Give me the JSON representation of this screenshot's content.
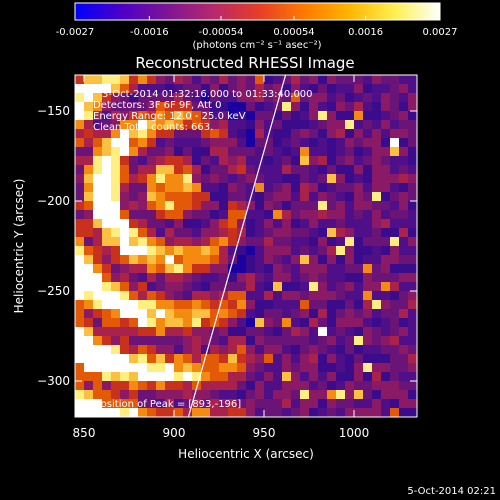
{
  "colorbar": {
    "tick_labels": [
      "-0.0027",
      "-0.0016",
      "-0.00054",
      "0.00054",
      "0.0016",
      "0.0027"
    ],
    "tick_values": [
      -0.0027,
      -0.0016,
      -0.00054,
      0.00054,
      0.0016,
      0.0027
    ],
    "range": [
      -0.0027,
      0.0027
    ],
    "unit_label": "(photons cm⁻² s⁻¹ asec⁻²)",
    "gradient_colors": [
      "#0000ff",
      "#4b00c8",
      "#7d1496",
      "#b4286e",
      "#e63c28",
      "#ff7800",
      "#ffb400",
      "#fff050",
      "#ffffff"
    ]
  },
  "chart_data": {
    "type": "heatmap",
    "title": "Reconstructed RHESSI Image",
    "xlabel": "Heliocentric X (arcsec)",
    "ylabel": "Heliocentric Y (arcsec)",
    "xlim": [
      845,
      1035
    ],
    "ylim": [
      -320,
      -130
    ],
    "x_ticks": [
      850,
      900,
      950,
      1000
    ],
    "y_ticks": [
      -150,
      -200,
      -250,
      -300
    ],
    "x_tick_labels": [
      "850",
      "900",
      "950",
      "1000"
    ],
    "y_tick_labels": [
      "−150",
      "−200",
      "−250",
      "−300"
    ],
    "info_lines": [
      "3-Oct-2014 01:32:16.000 to 01:33:40.000",
      "Detectors: 3F 6F 9F, Att 0",
      "Energy Range: 12.0 - 25.0 keV",
      "Clean    Total counts: 663."
    ],
    "peak_label": "Position of Peak = [893,-196]",
    "peak_position": [
      893,
      -196
    ],
    "limb_line": {
      "x": [
        908,
        962
      ],
      "y": [
        -320,
        -130
      ]
    },
    "grid": false
  },
  "footer": {
    "timestamp": "5-Oct-2014 02:21"
  }
}
